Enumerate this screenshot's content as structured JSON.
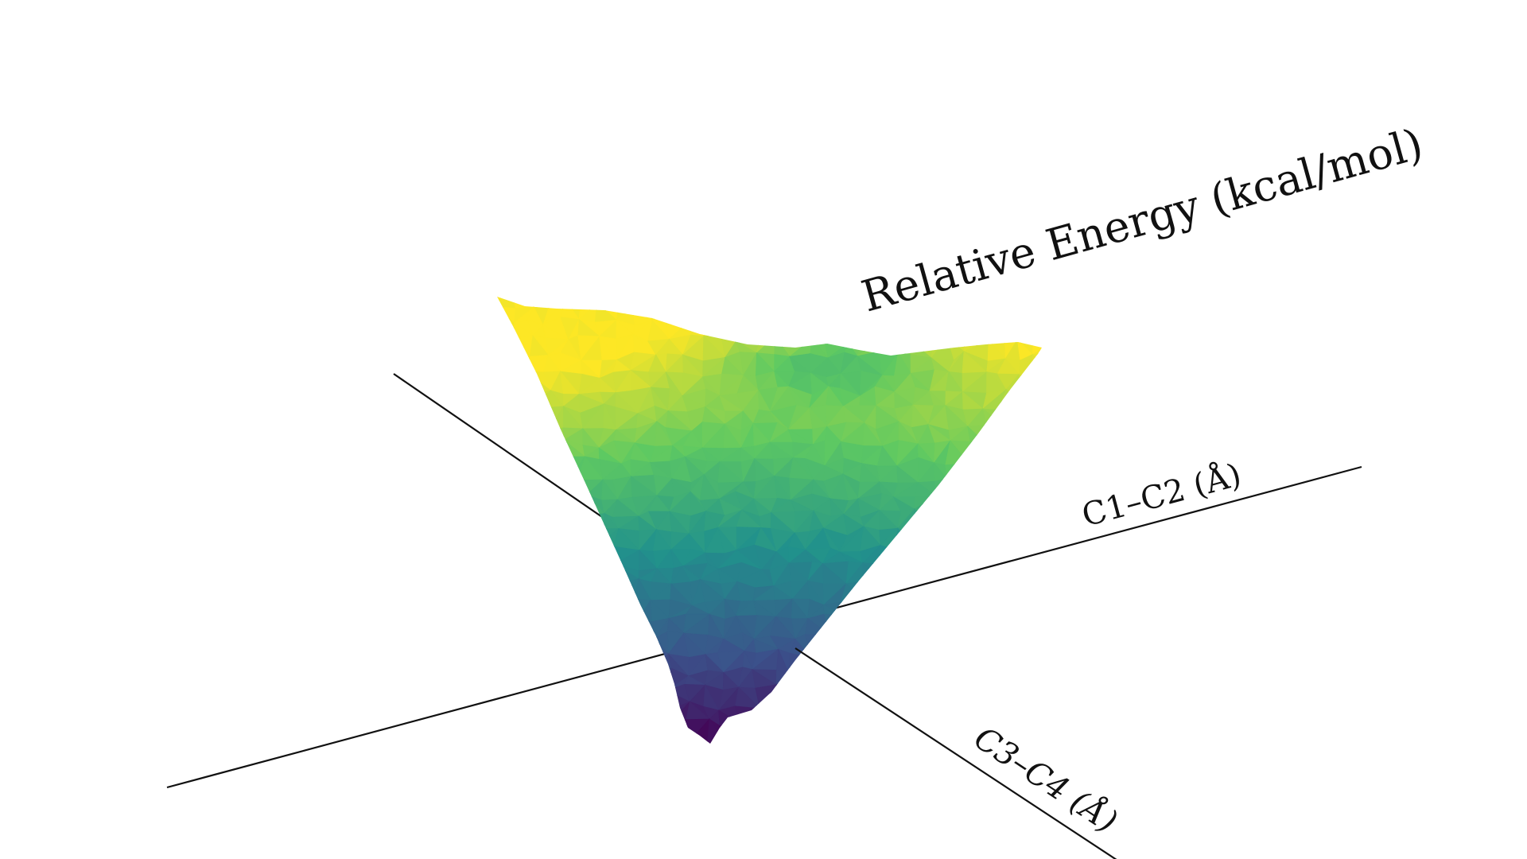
{
  "chart_data": {
    "type": "surface",
    "title": "",
    "axes": {
      "x_label": "C1–C2 (Å)",
      "y_label": "C3–C4 (Å)",
      "z_label": "Relative Energy (kcal/mol)"
    },
    "colormap": "viridis",
    "colormap_stops": [
      "#440154",
      "#3b528b",
      "#21918c",
      "#5ec962",
      "#fde725"
    ],
    "grid": false,
    "ticks": false,
    "legend": "none",
    "description_values": {
      "minimum_energy": 0,
      "maximum_energy": 1
    }
  }
}
